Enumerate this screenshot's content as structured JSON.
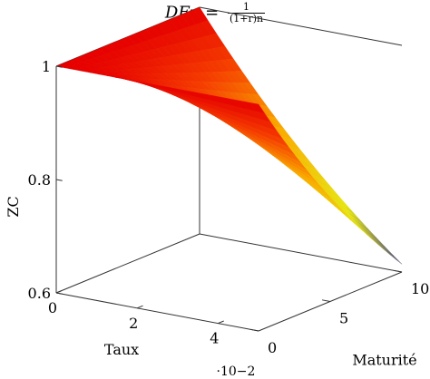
{
  "title": {
    "main": "DFn =",
    "num": "1",
    "den": "(1+r)n"
  },
  "chart_data": {
    "type": "surface3d",
    "title": "DF_n = 1/(1+r)^n",
    "xlabel": "Taux",
    "ylabel": "Maturité",
    "zlabel": "ZC",
    "x_scale_label": "·10−2",
    "xlim": [
      0,
      0.05
    ],
    "ylim": [
      0,
      10
    ],
    "zlim": [
      0.6,
      1.0
    ],
    "x_ticks": [
      "0",
      "2",
      "4"
    ],
    "y_ticks": [
      "0",
      "5",
      "10"
    ],
    "z_ticks": [
      "0.6",
      "0.8",
      "1"
    ],
    "function": "1/(1+x)^y",
    "colormap": "hot",
    "grid": false
  }
}
